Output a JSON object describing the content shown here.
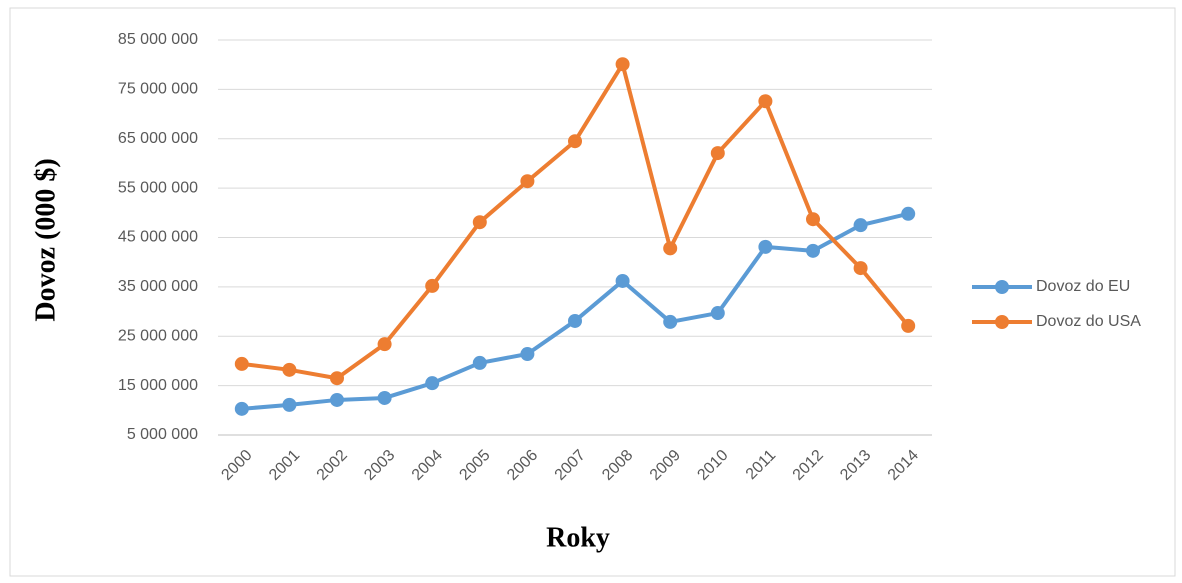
{
  "chart_data": {
    "type": "line",
    "ylabel": "Dovoz (000 $)",
    "xlabel": "Roky",
    "categories": [
      "2000",
      "2001",
      "2002",
      "2003",
      "2004",
      "2005",
      "2006",
      "2007",
      "2008",
      "2009",
      "2010",
      "2011",
      "2012",
      "2013",
      "2014"
    ],
    "series": [
      {
        "name": "Dovoz do EU",
        "color": "#5b9bd5",
        "values": [
          10300000,
          11100000,
          12100000,
          12500000,
          15500000,
          19600000,
          21400000,
          28100000,
          36200000,
          27900000,
          29700000,
          43100000,
          42300000,
          47500000,
          49800000
        ]
      },
      {
        "name": "Dovoz do USA",
        "color": "#ed7d31",
        "values": [
          19400000,
          18200000,
          16500000,
          23400000,
          35200000,
          48100000,
          56400000,
          64500000,
          80100000,
          42800000,
          62100000,
          72600000,
          48700000,
          38800000,
          27100000
        ]
      }
    ],
    "ylim": [
      5000000,
      85000000
    ],
    "yticks": [
      {
        "value": 5000000,
        "label": "5 000 000"
      },
      {
        "value": 15000000,
        "label": "15 000 000"
      },
      {
        "value": 25000000,
        "label": "25 000 000"
      },
      {
        "value": 35000000,
        "label": "35 000 000"
      },
      {
        "value": 45000000,
        "label": "45 000 000"
      },
      {
        "value": 55000000,
        "label": "55 000 000"
      },
      {
        "value": 65000000,
        "label": "65 000 000"
      },
      {
        "value": 75000000,
        "label": "75 000 000"
      },
      {
        "value": 85000000,
        "label": "85 000 000"
      }
    ],
    "grid": true,
    "legend": "right"
  }
}
